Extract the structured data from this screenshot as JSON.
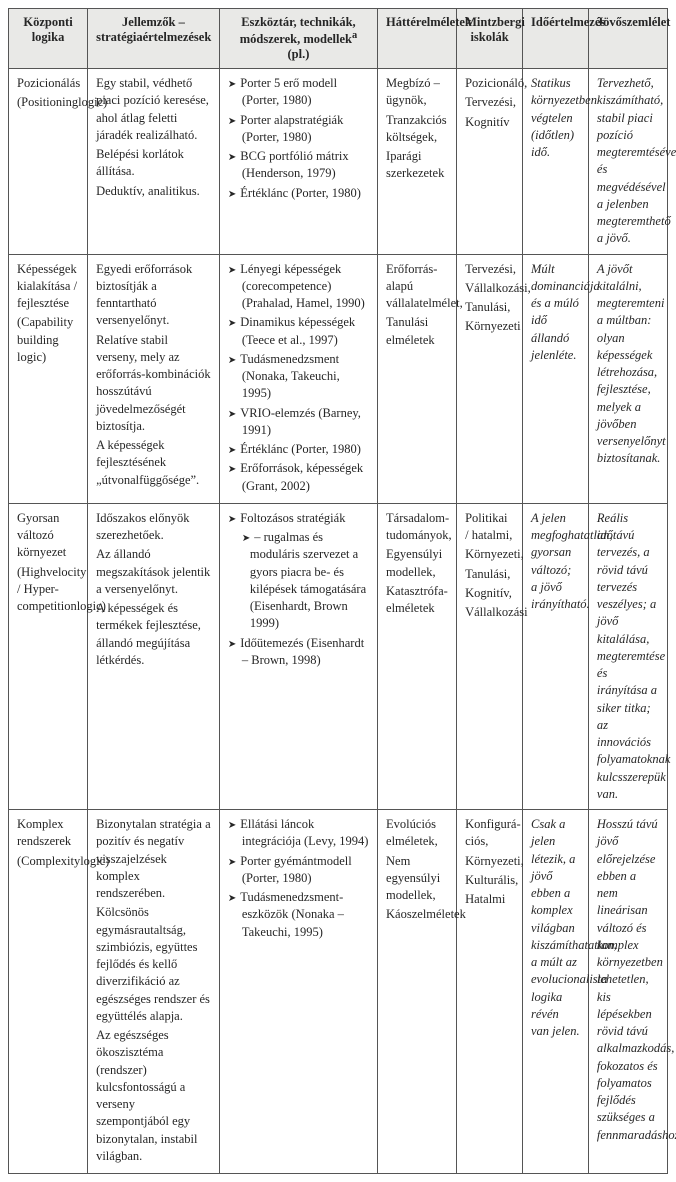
{
  "colors": {
    "header_bg": "#e9e9e7",
    "cell_bg": "#ffffff",
    "border": "#555555",
    "text": "#262626"
  },
  "header": {
    "h0": "Központi logika",
    "h1_line1": "Jellemzők –",
    "h1_line2": "stratégiaértelmezések",
    "h2_prefix": "Eszköztár, technikák, módszerek, modellek",
    "h2_sup": "a",
    "h2_suffix": " (pl.)",
    "h3": "Háttérelméletek",
    "h4_line1": "Mintzbergi",
    "h4_line2": "iskolák",
    "h5": "Időértelmezés",
    "h6": "Jövőszemlélet"
  },
  "rows": [
    {
      "logic_l1": "Pozicionálás",
      "logic_l2": "(Positioninglogic)",
      "features_p1": "Egy stabil, védhető piaci pozíció keresése, ahol átlag feletti járadék realizálható.",
      "features_p2": "Belépési korlátok állítása.",
      "features_p3": "Deduktív, analitikus.",
      "tools": [
        "Porter 5 erő modell (Porter, 1980)",
        "Porter alapstratégiák (Porter, 1980)",
        "BCG portfólió mátrix (Henderson, 1979)",
        "Értéklánc (Porter, 1980)"
      ],
      "theories_l1": "Megbízó – ügynök,",
      "theories_l2": "Tranzakciós költségek,",
      "theories_l3": "Iparági szerkezetek",
      "schools_l1": "Pozicionáló,",
      "schools_l2": "Tervezési,",
      "schools_l3": "Kognitív",
      "time": "Statikus környezetben végtelen (időtlen) idő.",
      "future": "Tervezhető, kiszámítható, stabil piaci pozíció megteremtésével és megvédésével a jelenben megteremthető a jövő."
    },
    {
      "logic_l1": "Képességek kialakítása / fejlesztése",
      "logic_l2": "(Capability building logic)",
      "features_p1": "Egyedi erőforrások biztosítják a fenntartható versenyelőnyt.",
      "features_p2": "Relatíve stabil verseny, mely az erőforrás-kombinációk hosszútávú jövedelmezőségét biztosítja.",
      "features_p3": "A képességek fejlesztésének „útvonalfüggősége”.",
      "tools": [
        "Lényegi képességek (corecompetence) (Prahalad, Hamel, 1990)",
        "Dinamikus képességek (Teece et al., 1997)",
        "Tudásmenedzsment (Nonaka, Takeuchi, 1995)",
        "VRIO-elemzés (Barney, 1991)",
        "Értéklánc (Porter, 1980)",
        "Erőforrások, képességek (Grant, 2002)"
      ],
      "theories_l1": "Erőforrás-alapú vállalatelmélet,",
      "theories_l2": "Tanulási elméletek",
      "schools_l1": "Tervezési,",
      "schools_l2": "Vállalkozási,",
      "schools_l3": "Tanulási,",
      "schools_l4": "Környezeti",
      "time": "Múlt dominanciája és a múló idő állandó jelenléte.",
      "future": "A jövőt kitalálni, megteremteni a múltban: olyan képességek létrehozása, fejlesztése, melyek a jövőben versenyelőnyt biztosítanak."
    },
    {
      "logic_l1": "Gyorsan változó környezet",
      "logic_l2": "(Highvelocity / Hyper-competitionlogic)",
      "features_p1": "Időszakos előnyök szerezhetőek.",
      "features_p2": "Az állandó megszakítások jelentik a versenyelőnyt.",
      "features_p3": "A képességek és termékek fejlesztése, állandó megújítása létkérdés.",
      "tools": [
        "Foltozásos stratégiák",
        "– rugalmas és moduláris szervezet a gyors piacra be- és kilépések támogatására (Eisenhardt, Brown 1999)",
        "Időütemezés (Eisenhardt – Brown, 1998)"
      ],
      "tools_plain_1": true,
      "theories_l1": "Társadalom-tudományok,",
      "theories_l2": "Egyensúlyi modellek,",
      "theories_l3": "Katasztrófa-elméletek",
      "schools_l1": "Politikai / hatalmi,",
      "schools_l2": "Környezeti,",
      "schools_l3": "Tanulási,",
      "schools_l4": "Kognitív,",
      "schools_l5": "Vállalkozási",
      "time": "A jelen megfoghatatlan, gyorsan változó; a jövő irányítható.",
      "future": "Reális időtávú tervezés, a rövid távú tervezés veszélyes; a jövő kitalálása, megteremtése és irányítása a siker titka; az innovációs folyamatoknak kulcsszerepük van."
    },
    {
      "logic_l1": "Komplex rendszerek",
      "logic_l2": "(Complexitylogic)",
      "features_p1": "Bizonytalan stratégia a pozitív és negatív visszajelzések komplex rendszerében.",
      "features_p2": "Kölcsönös egymásrautaltság, szimbiózis, együttes fejlődés és kellő diverzifikáció az egészséges rendszer és együttélés alapja.",
      "features_p3": "Az egészséges ökoszisztéma (rendszer) kulcsfontosságú a verseny szempontjából egy bizonytalan, instabil világban.",
      "tools": [
        "Ellátási láncok integrációja (Levy, 1994)",
        "Porter gyémántmodell (Porter, 1980)",
        "Tudásmenedzsment-eszközök (Nonaka – Takeuchi, 1995)"
      ],
      "theories_l1": "Evolúciós elméletek,",
      "theories_l2": "Nem egyensúlyi modellek,",
      "theories_l3": "Káoszelméletek",
      "schools_l1": "Konfigurá-ciós,",
      "schools_l2": "Környezeti,",
      "schools_l3": "Kulturális,",
      "schools_l4": "Hatalmi",
      "time": "Csak a jelen létezik, a jövő ebben a komplex világban kiszámíthatatlan, a múlt az evolucionalista logika révén van jelen.",
      "future": "Hosszú távú jövő előrejelzése ebben a nem lineárisan változó és komplex környezetben lehetetlen, kis lépésekben rövid távú alkalmazkodás, fokozatos és folyamatos fejlődés szükséges a fennmaradáshoz."
    }
  ]
}
